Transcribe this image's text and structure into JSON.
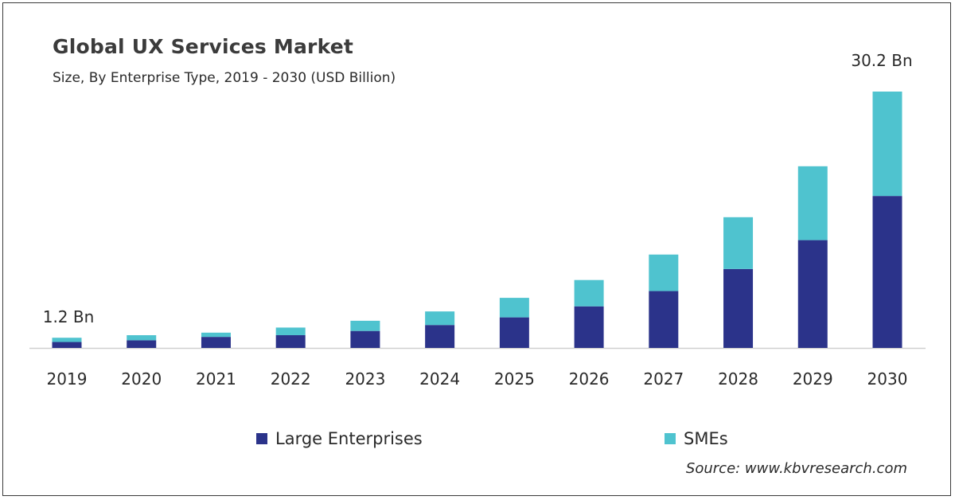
{
  "header": {
    "title": "Global UX Services Market",
    "subtitle": "Size, By Enterprise Type, 2019 - 2030 (USD Billion)"
  },
  "annotations": {
    "first": "1.2 Bn",
    "last": "30.2 Bn"
  },
  "colors": {
    "large_enterprises": "#2b338a",
    "smes": "#4fc3cf",
    "axis": "#cfcfcf"
  },
  "legend": {
    "large": "Large Enterprises",
    "smes": "SMEs"
  },
  "source": "Source: www.kbvresearch.com",
  "chart_data": {
    "type": "bar",
    "stacked": true,
    "categories": [
      "2019",
      "2020",
      "2021",
      "2022",
      "2023",
      "2024",
      "2025",
      "2026",
      "2027",
      "2028",
      "2029",
      "2030"
    ],
    "series": [
      {
        "name": "Large Enterprises",
        "values": [
          0.7,
          0.9,
          1.3,
          1.5,
          2.0,
          2.7,
          3.6,
          4.9,
          6.7,
          9.3,
          12.7,
          17.9
        ]
      },
      {
        "name": "SMEs",
        "values": [
          0.5,
          0.6,
          0.5,
          0.9,
          1.2,
          1.6,
          2.3,
          3.1,
          4.3,
          6.1,
          8.7,
          12.3
        ]
      }
    ],
    "ylim": [
      0,
      30.2
    ],
    "grid": false,
    "legend_position": "bottom"
  }
}
